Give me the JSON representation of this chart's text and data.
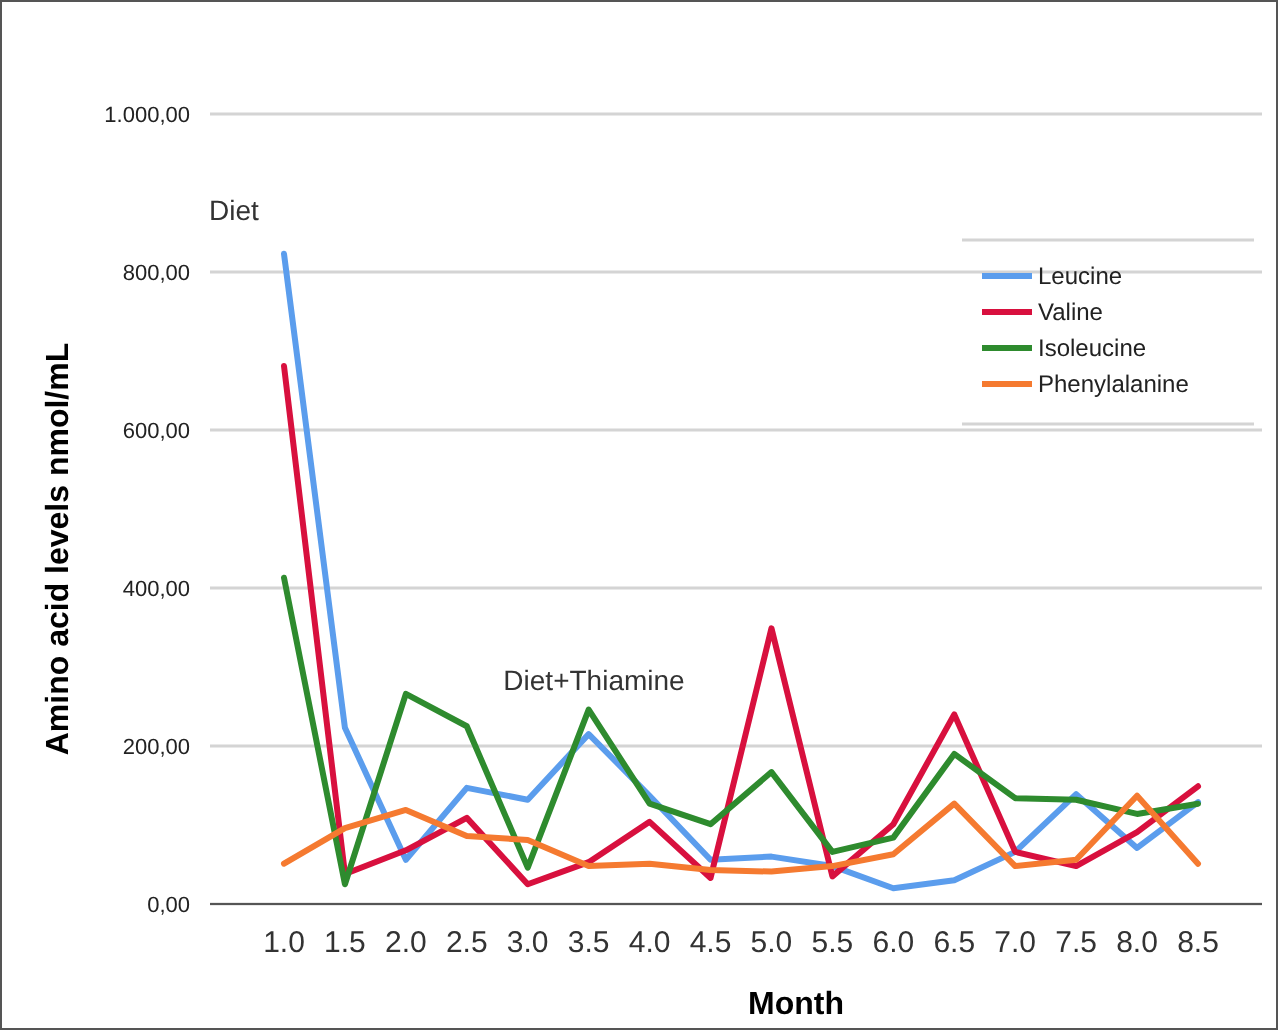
{
  "chart_data": {
    "type": "line",
    "xlabel": "Month",
    "ylabel": "Amino acid levels nmol/mL",
    "categories": [
      "1.0",
      "1.5",
      "2.0",
      "2.5",
      "3.0",
      "3.5",
      "4.0",
      "4.5",
      "5.0",
      "5.5",
      "6.0",
      "6.5",
      "7.0",
      "7.5",
      "8.0",
      "8.5"
    ],
    "series": [
      {
        "name": "Leucine",
        "color": "#5b9ded",
        "values": [
          823,
          223,
          56,
          147,
          132,
          215,
          137,
          56,
          60,
          48,
          20,
          30,
          66,
          139,
          71,
          129
        ]
      },
      {
        "name": "Valine",
        "color": "#d8103e",
        "values": [
          681,
          38,
          68,
          109,
          25,
          53,
          104,
          33,
          349,
          35,
          101,
          240,
          66,
          48,
          91,
          149
        ]
      },
      {
        "name": "Isoleucine",
        "color": "#2e8b2e",
        "values": [
          413,
          25,
          266,
          225,
          46,
          246,
          127,
          101,
          167,
          66,
          84,
          190,
          134,
          132,
          114,
          127
        ]
      },
      {
        "name": "Phenylalanine",
        "color": "#f57a30",
        "values": [
          51,
          96,
          119,
          86,
          81,
          48,
          51,
          43,
          41,
          48,
          63,
          127,
          48,
          56,
          137,
          51
        ]
      }
    ],
    "ylim": [
      0,
      1000
    ],
    "yticks": [
      {
        "value": 0,
        "label": "0,00"
      },
      {
        "value": 200,
        "label": "200,00"
      },
      {
        "value": 400,
        "label": "400,00"
      },
      {
        "value": 600,
        "label": "600,00"
      },
      {
        "value": 800,
        "label": "800,00"
      },
      {
        "value": 1000,
        "label": "1.000,00"
      }
    ],
    "grid": "y",
    "legend": "top right",
    "marker": "none",
    "line_style": "solid",
    "annotations": [
      "Diet",
      "Diet+Thiamine"
    ]
  }
}
